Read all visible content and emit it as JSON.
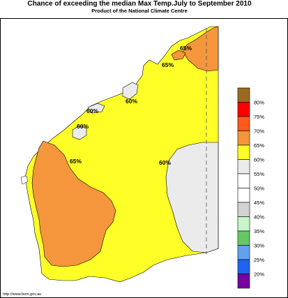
{
  "header": {
    "title": "Chance of exceeding the median Max Temp.July to September 2010",
    "subtitle": "Product of the National Climate Centre"
  },
  "map_labels": [
    "65%",
    "65%",
    "60%",
    "60%",
    "60%",
    "65%",
    "60%"
  ],
  "legend": [
    {
      "label": "80%",
      "color": "#9b6a1f"
    },
    {
      "label": "75%",
      "color": "#ff0000"
    },
    {
      "label": "70%",
      "color": "#ff5a1e"
    },
    {
      "label": "65%",
      "color": "#f5963c"
    },
    {
      "label": "60%",
      "color": "#ffff28"
    },
    {
      "label": "55%",
      "color": "#ebebeb"
    },
    {
      "label": "50%",
      "color": "#ffffff"
    },
    {
      "label": "45%",
      "color": "#ffffff"
    },
    {
      "label": "40%",
      "color": "#d2d2d2"
    },
    {
      "label": "35%",
      "color": "#c8f5c8"
    },
    {
      "label": "30%",
      "color": "#64c864"
    },
    {
      "label": "25%",
      "color": "#64a0f0"
    },
    {
      "label": "20%",
      "color": "#1e64f0"
    },
    {
      "label": "",
      "color": "#7800a0"
    }
  ],
  "footer": {
    "url": "http://www.bom.gov.au"
  }
}
